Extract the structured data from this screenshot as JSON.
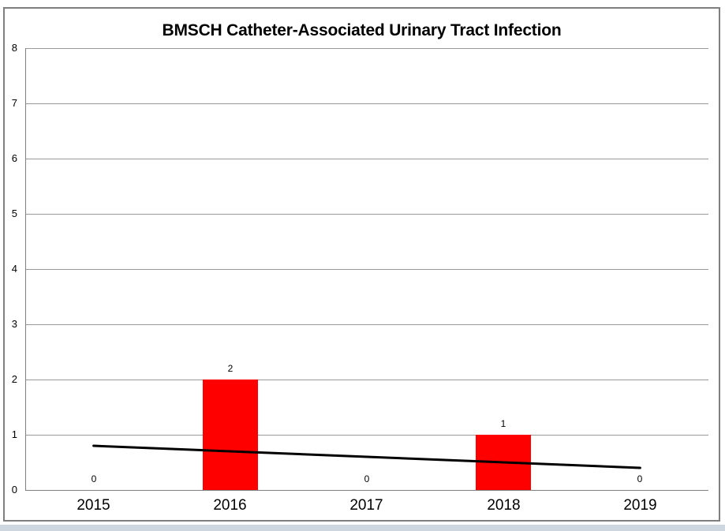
{
  "chart_data": {
    "type": "bar",
    "title": "BMSCH Catheter-Associated Urinary Tract Infection",
    "categories": [
      "2015",
      "2016",
      "2017",
      "2018",
      "2019"
    ],
    "values": [
      0,
      2,
      0,
      1,
      0
    ],
    "data_labels": [
      "0",
      "2",
      "0",
      "1",
      "0"
    ],
    "trendline": {
      "shape": "linear",
      "start": 0.8,
      "end": 0.4
    },
    "ylim": [
      0,
      8
    ],
    "yticks": [
      "0",
      "1",
      "2",
      "3",
      "4",
      "5",
      "6",
      "7",
      "8"
    ],
    "grid": true,
    "legend": "none",
    "bar_color": "#FF0000",
    "trendline_color": "#000000",
    "gridline_color": "#999999",
    "axis_color": "#808080"
  },
  "frame": {
    "border_color": "#7F7F7F"
  },
  "window": {
    "bottom_strip_color": "#CED6E0"
  }
}
